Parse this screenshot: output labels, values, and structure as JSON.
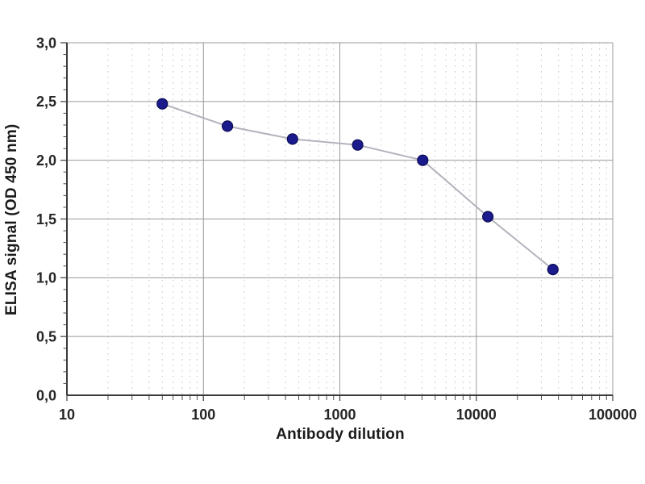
{
  "chart_data": {
    "type": "scatter",
    "title": "",
    "xlabel": "Antibody dilution",
    "ylabel": "ELISA signal (OD 450 nm)",
    "x_scale": "log",
    "y_scale": "linear",
    "xlim": [
      10,
      100000
    ],
    "ylim": [
      0,
      3
    ],
    "grid": true,
    "x": [
      50,
      150,
      450,
      1350,
      4050,
      12150,
      36450
    ],
    "y": [
      2.48,
      2.29,
      2.18,
      2.13,
      2.0,
      1.52,
      1.07
    ],
    "x_tick_values": [
      10,
      100,
      1000,
      10000,
      100000
    ],
    "x_tick_labels": [
      "10",
      "100",
      "1000",
      "10000",
      "100000"
    ],
    "y_tick_values": [
      0,
      0.5,
      1,
      1.5,
      2,
      2.5,
      3
    ],
    "y_tick_labels": [
      "0,0",
      "0,5",
      "1,0",
      "1,5",
      "2,0",
      "2,5",
      "3,0"
    ],
    "y_minor_step": 0.1,
    "colors": {
      "marker_fill": "#1a1a8c",
      "marker_edge": "#0c0c55",
      "line": "#b3b3bd",
      "grid_major": "#9a9a9a",
      "grid_minor": "#c2c2c2",
      "axis": "#3a3a3a",
      "tick": "#4d4d4d",
      "tick_label": "#262626"
    }
  }
}
